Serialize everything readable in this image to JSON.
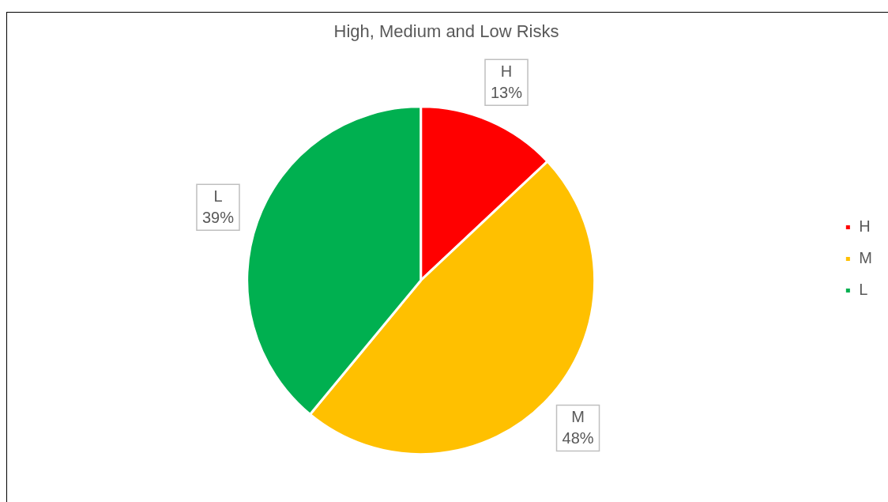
{
  "chart_data": {
    "type": "pie",
    "title": "High, Medium and Low Risks",
    "categories": [
      "H",
      "M",
      "L"
    ],
    "values": [
      13,
      48,
      39
    ],
    "colors": [
      "#ff0000",
      "#ffc000",
      "#00b050"
    ],
    "value_labels": [
      "13%",
      "48%",
      "39%"
    ],
    "legend": "right"
  }
}
